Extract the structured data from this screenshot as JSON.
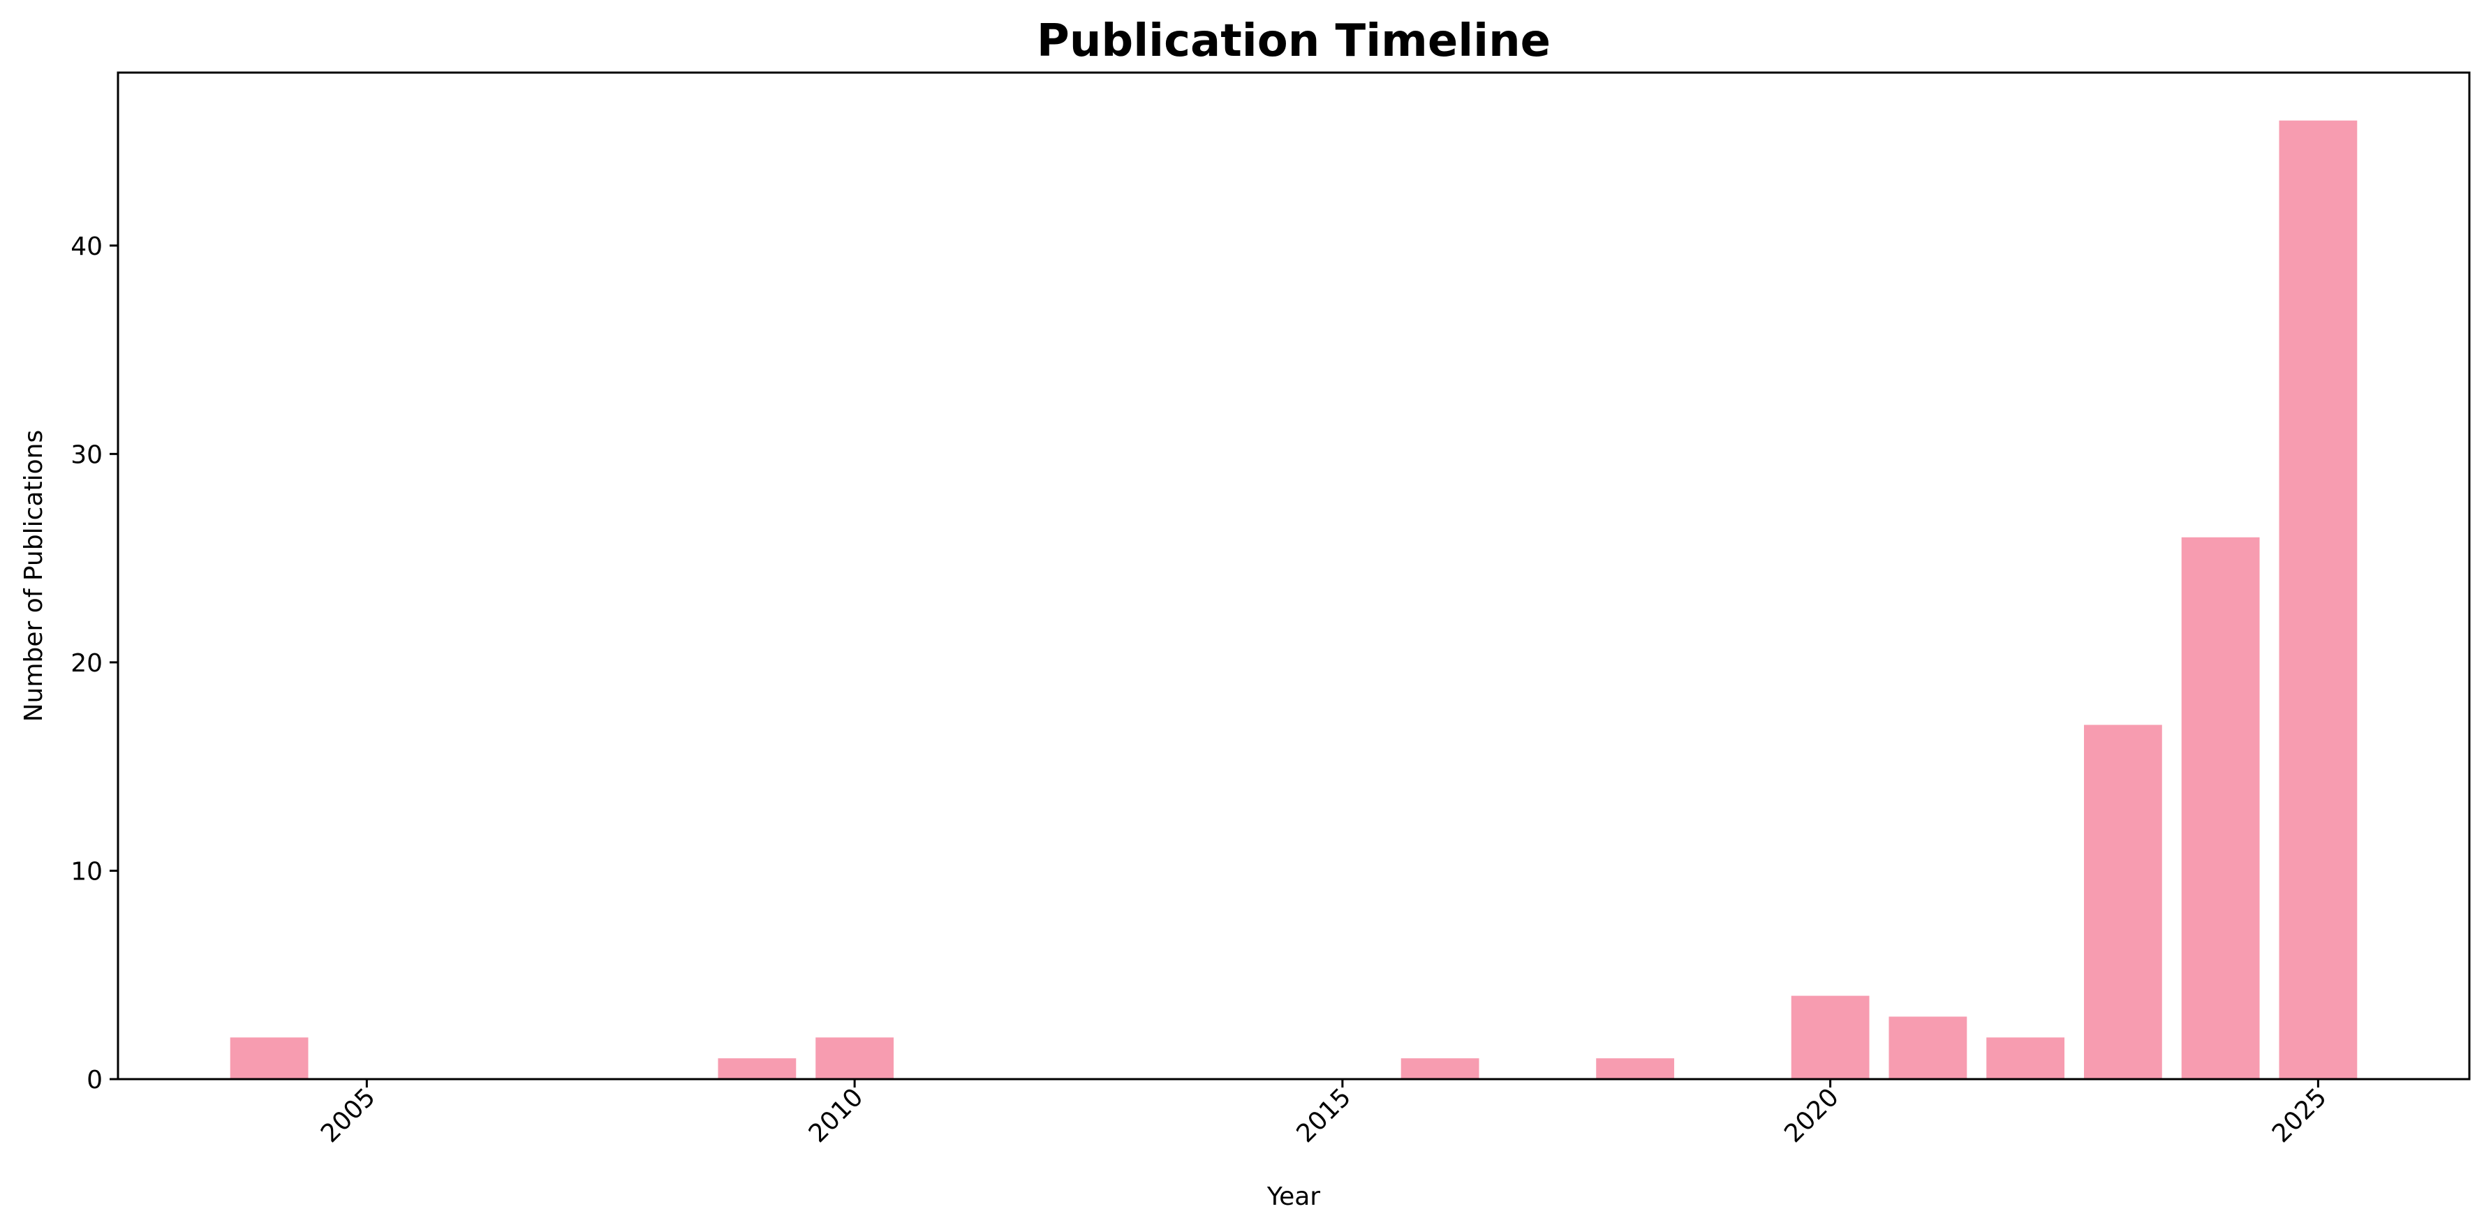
{
  "chart_data": {
    "type": "bar",
    "title": "Publication Timeline",
    "xlabel": "Year",
    "ylabel": "Number of Publications",
    "x": [
      2004,
      2009,
      2010,
      2016,
      2018,
      2020,
      2021,
      2022,
      2023,
      2024,
      2025
    ],
    "values": [
      2,
      1,
      2,
      1,
      1,
      4,
      3,
      2,
      17,
      26,
      46
    ],
    "xlim": [
      2002.45,
      2026.55
    ],
    "ylim": [
      0,
      48.3
    ],
    "xticks": [
      2005,
      2010,
      2015,
      2020,
      2025
    ],
    "yticks": [
      0,
      10,
      20,
      30,
      40
    ],
    "xtick_rotation": 45,
    "bar_color": "#f79cb0",
    "grid": false
  }
}
